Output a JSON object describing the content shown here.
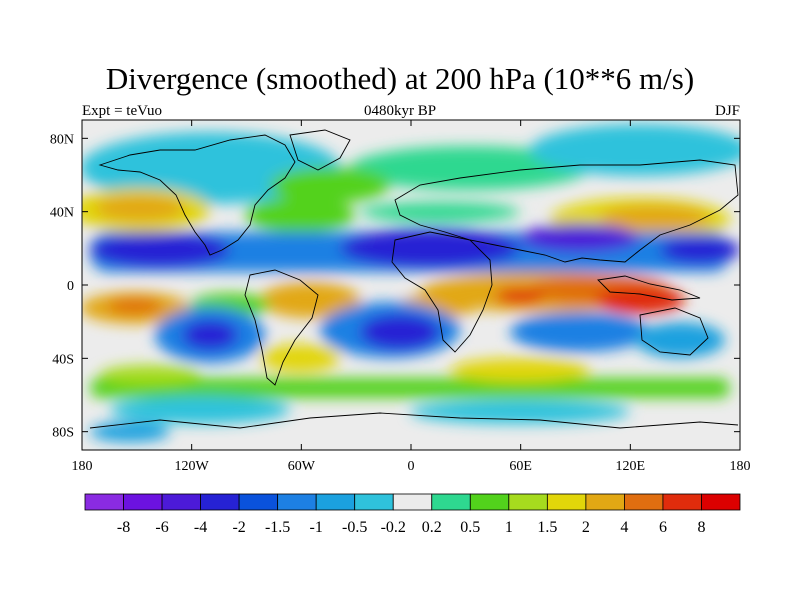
{
  "title": "Divergence (smoothed) at 200 hPa (10**6 m/s)",
  "left_label": "Expt = teVuo",
  "center_label": "0480kyr BP",
  "right_label": "DJF",
  "map": {
    "lon_range": [
      -180,
      180
    ],
    "lat_range": [
      -90,
      90
    ],
    "x_ticks": [
      {
        "lon": -180,
        "label": "180"
      },
      {
        "lon": -120,
        "label": "120W"
      },
      {
        "lon": -60,
        "label": "60W"
      },
      {
        "lon": 0,
        "label": "0"
      },
      {
        "lon": 60,
        "label": "60E"
      },
      {
        "lon": 120,
        "label": "120E"
      },
      {
        "lon": 180,
        "label": "180"
      }
    ],
    "y_ticks": [
      {
        "lat": 80,
        "label": "80N"
      },
      {
        "lat": 40,
        "label": "40N"
      },
      {
        "lat": 0,
        "label": "0"
      },
      {
        "lat": -40,
        "label": "40S"
      },
      {
        "lat": -80,
        "label": "80S"
      }
    ]
  },
  "colorbar": {
    "colors": [
      "#8a2be2",
      "#6c12e0",
      "#4c1ad8",
      "#2622d4",
      "#0a52dc",
      "#1d80e3",
      "#1ba1df",
      "#2fc2dc",
      "#ececec",
      "#2ed890",
      "#52d21c",
      "#a6db1e",
      "#e2d60a",
      "#e2a814",
      "#e06e10",
      "#e02c0c",
      "#dc0000"
    ],
    "labels": [
      "-8",
      "-6",
      "-4",
      "-2",
      "-1.5",
      "-1",
      "-0.5",
      "-0.2",
      "0.2",
      "0.5",
      "1",
      "1.5",
      "2",
      "4",
      "6",
      "8"
    ]
  }
}
